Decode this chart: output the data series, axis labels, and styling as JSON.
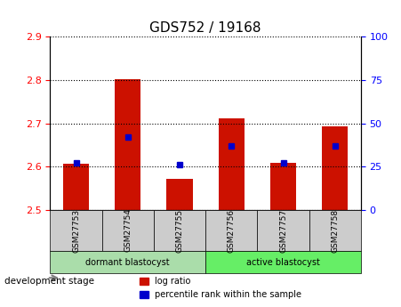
{
  "title": "GDS752 / 19168",
  "samples": [
    "GSM27753",
    "GSM27754",
    "GSM27755",
    "GSM27756",
    "GSM27757",
    "GSM27758"
  ],
  "log_ratio_values": [
    2.607,
    2.802,
    2.572,
    2.712,
    2.608,
    2.692
  ],
  "log_ratio_base": 2.5,
  "percentile_rank": [
    27,
    42,
    26,
    37,
    27,
    37
  ],
  "ylim_left": [
    2.5,
    2.9
  ],
  "ylim_right": [
    0,
    100
  ],
  "yticks_left": [
    2.5,
    2.6,
    2.7,
    2.8,
    2.9
  ],
  "yticks_right": [
    0,
    25,
    50,
    75,
    100
  ],
  "group_labels": [
    "dormant blastocyst",
    "active blastocyst"
  ],
  "group_colors": [
    "#aaddaa",
    "#66dd66"
  ],
  "group_ranges": [
    [
      0,
      3
    ],
    [
      3,
      6
    ]
  ],
  "stage_label": "development stage",
  "bar_color": "#cc1100",
  "dot_color": "#0000cc",
  "bar_width": 0.5,
  "background_plot": "#ffffff",
  "background_xtick": "#cccccc",
  "legend_items": [
    "log ratio",
    "percentile rank within the sample"
  ]
}
